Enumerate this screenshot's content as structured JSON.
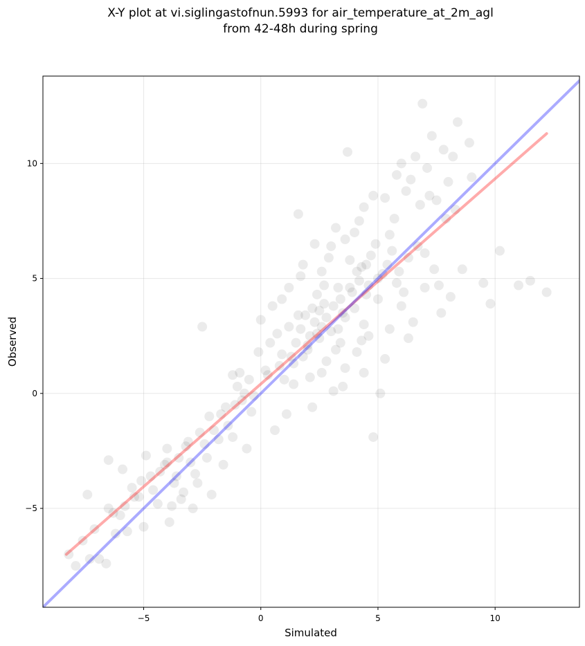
{
  "chart_data": {
    "type": "scatter",
    "title": [
      "X-Y plot at vi.siglingastofnun.5993 for air_temperature_at_2m_agl",
      "from 42-48h during spring"
    ],
    "xlabel": "Simulated",
    "ylabel": "Observed",
    "xlim": [
      -9.3,
      13.6
    ],
    "ylim": [
      -9.3,
      13.8
    ],
    "xticks": [
      -5,
      0,
      5,
      10
    ],
    "yticks": [
      -5,
      0,
      5,
      10
    ],
    "xtick_labels": [
      "−5",
      "0",
      "5",
      "10"
    ],
    "ytick_labels": [
      "−5",
      "0",
      "5",
      "10"
    ],
    "grid": true,
    "series": [
      {
        "type": "scatter",
        "color": "#000000",
        "alpha": 0.08,
        "points": [
          [
            -8.2,
            -7.0
          ],
          [
            -7.9,
            -7.5
          ],
          [
            -7.6,
            -6.4
          ],
          [
            -7.3,
            -7.2
          ],
          [
            -7.1,
            -5.9
          ],
          [
            -6.9,
            -7.2
          ],
          [
            -6.6,
            -7.4
          ],
          [
            -6.5,
            -5.0
          ],
          [
            -6.2,
            -6.1
          ],
          [
            -6.0,
            -5.3
          ],
          [
            -5.7,
            -6.0
          ],
          [
            -5.5,
            -4.1
          ],
          [
            -5.2,
            -4.5
          ],
          [
            -5.0,
            -5.8
          ],
          [
            -4.7,
            -3.6
          ],
          [
            -4.4,
            -4.8
          ],
          [
            -4.1,
            -3.1
          ],
          [
            -3.9,
            -5.6
          ],
          [
            -3.6,
            -3.6
          ],
          [
            -3.3,
            -4.3
          ],
          [
            -3.1,
            -2.1
          ],
          [
            -2.9,
            -5.0
          ],
          [
            -2.6,
            -1.7
          ],
          [
            -2.3,
            -2.8
          ],
          [
            -2.1,
            -4.4
          ],
          [
            -1.8,
            -2.0
          ],
          [
            -1.5,
            -0.6
          ],
          [
            -1.2,
            -1.9
          ],
          [
            -0.9,
            0.9
          ],
          [
            -0.6,
            -2.4
          ],
          [
            -0.3,
            -0.1
          ],
          [
            0.0,
            3.2
          ],
          [
            0.3,
            0.8
          ],
          [
            0.6,
            -1.6
          ],
          [
            0.9,
            1.7
          ],
          [
            1.2,
            2.9
          ],
          [
            1.4,
            0.4
          ],
          [
            1.7,
            5.1
          ],
          [
            2.0,
            2.1
          ],
          [
            2.2,
            -0.6
          ],
          [
            2.5,
            3.6
          ],
          [
            2.8,
            1.4
          ],
          [
            3.0,
            6.4
          ],
          [
            3.3,
            2.8
          ],
          [
            3.5,
            0.3
          ],
          [
            3.8,
            4.6
          ],
          [
            4.0,
            7.0
          ],
          [
            4.3,
            2.3
          ],
          [
            4.5,
            5.6
          ],
          [
            4.8,
            8.6
          ],
          [
            5.0,
            4.1
          ],
          [
            5.3,
            1.5
          ],
          [
            5.5,
            6.9
          ],
          [
            5.8,
            4.8
          ],
          [
            6.0,
            10.0
          ],
          [
            6.3,
            5.9
          ],
          [
            6.5,
            3.1
          ],
          [
            6.8,
            8.2
          ],
          [
            7.0,
            6.1
          ],
          [
            7.3,
            11.2
          ],
          [
            7.6,
            4.7
          ],
          [
            7.9,
            7.6
          ],
          [
            8.2,
            10.3
          ],
          [
            8.6,
            5.4
          ],
          [
            9.0,
            9.4
          ],
          [
            9.5,
            4.8
          ],
          [
            10.2,
            6.2
          ],
          [
            11.5,
            4.9
          ],
          [
            12.2,
            4.4
          ],
          [
            6.9,
            12.6
          ],
          [
            -6.5,
            -2.9
          ],
          [
            -4.0,
            -2.4
          ],
          [
            -2.5,
            2.9
          ],
          [
            -1.2,
            0.8
          ],
          [
            0.5,
            3.8
          ],
          [
            1.6,
            7.8
          ],
          [
            2.9,
            5.9
          ],
          [
            3.7,
            10.5
          ],
          [
            4.8,
            -1.9
          ],
          [
            5.1,
            0.0
          ],
          [
            -7.4,
            -4.4
          ],
          [
            -5.9,
            -3.3
          ],
          [
            -4.9,
            -2.7
          ],
          [
            -3.8,
            -4.9
          ],
          [
            -3.0,
            -3.0
          ],
          [
            -2.2,
            -1.0
          ],
          [
            -1.6,
            -3.1
          ],
          [
            -0.8,
            -0.3
          ],
          [
            -0.1,
            1.8
          ],
          [
            0.7,
            2.6
          ],
          [
            1.1,
            -0.9
          ],
          [
            1.8,
            1.6
          ],
          [
            2.4,
            2.6
          ],
          [
            2.7,
            4.7
          ],
          [
            3.2,
            1.9
          ],
          [
            3.6,
            3.3
          ],
          [
            4.1,
            5.3
          ],
          [
            4.4,
            3.0
          ],
          [
            4.9,
            6.5
          ],
          [
            5.2,
            5.2
          ],
          [
            5.7,
            7.6
          ],
          [
            6.1,
            4.4
          ],
          [
            6.4,
            9.3
          ],
          [
            6.7,
            6.4
          ],
          [
            7.2,
            8.6
          ],
          [
            7.8,
            10.6
          ],
          [
            8.4,
            11.8
          ],
          [
            8.9,
            10.9
          ],
          [
            9.8,
            3.9
          ],
          [
            11.0,
            4.7
          ],
          [
            1.9,
            3.4
          ],
          [
            2.1,
            2.5
          ],
          [
            2.3,
            3.1
          ],
          [
            2.6,
            2.9
          ],
          [
            2.8,
            3.3
          ],
          [
            3.1,
            3.8
          ],
          [
            3.4,
            4.1
          ],
          [
            3.9,
            4.4
          ],
          [
            4.2,
            4.9
          ],
          [
            4.6,
            4.7
          ],
          [
            1.5,
            2.2
          ],
          [
            2.0,
            1.9
          ],
          [
            2.5,
            2.4
          ],
          [
            3.0,
            2.7
          ],
          [
            3.5,
            3.5
          ],
          [
            4.0,
            3.7
          ],
          [
            4.5,
            4.3
          ],
          [
            5.0,
            5.0
          ],
          [
            5.4,
            5.6
          ],
          [
            5.9,
            5.3
          ],
          [
            0.8,
            1.2
          ],
          [
            1.3,
            1.6
          ],
          [
            1.7,
            2.8
          ],
          [
            2.2,
            3.7
          ],
          [
            2.7,
            3.9
          ],
          [
            3.3,
            4.6
          ],
          [
            3.8,
            5.8
          ],
          [
            4.3,
            5.5
          ],
          [
            4.7,
            6.0
          ],
          [
            5.6,
            6.2
          ],
          [
            -1.0,
            0.3
          ],
          [
            -0.5,
            0.6
          ],
          [
            0.2,
            1.0
          ],
          [
            0.4,
            2.2
          ],
          [
            1.0,
            0.6
          ],
          [
            1.4,
            1.3
          ],
          [
            1.6,
            3.4
          ],
          [
            2.4,
            4.3
          ],
          [
            3.4,
            2.2
          ],
          [
            4.6,
            2.5
          ],
          [
            -3.5,
            -2.8
          ],
          [
            -3.2,
            -2.3
          ],
          [
            -2.8,
            -3.5
          ],
          [
            -2.4,
            -2.2
          ],
          [
            -2.0,
            -1.6
          ],
          [
            -1.7,
            -0.9
          ],
          [
            -1.4,
            -1.4
          ],
          [
            -1.1,
            -0.5
          ],
          [
            -0.7,
            0.0
          ],
          [
            -0.4,
            -0.8
          ],
          [
            -6.3,
            -5.2
          ],
          [
            -5.8,
            -4.9
          ],
          [
            -5.4,
            -4.5
          ],
          [
            -5.1,
            -3.8
          ],
          [
            -4.6,
            -4.2
          ],
          [
            -4.3,
            -3.4
          ],
          [
            -4.0,
            -3.0
          ],
          [
            -3.7,
            -3.9
          ],
          [
            -3.4,
            -4.6
          ],
          [
            -2.7,
            -3.9
          ],
          [
            0.9,
            4.1
          ],
          [
            1.2,
            4.6
          ],
          [
            1.8,
            5.6
          ],
          [
            2.3,
            6.5
          ],
          [
            2.6,
            5.3
          ],
          [
            3.2,
            7.2
          ],
          [
            3.6,
            6.7
          ],
          [
            4.2,
            7.5
          ],
          [
            4.4,
            8.1
          ],
          [
            5.3,
            8.5
          ],
          [
            5.8,
            9.5
          ],
          [
            6.2,
            8.8
          ],
          [
            6.6,
            10.3
          ],
          [
            7.1,
            9.8
          ],
          [
            7.5,
            8.4
          ],
          [
            8.0,
            9.2
          ],
          [
            8.3,
            8.0
          ],
          [
            7.4,
            5.4
          ],
          [
            7.7,
            3.5
          ],
          [
            8.1,
            4.2
          ],
          [
            2.1,
            0.7
          ],
          [
            2.6,
            0.9
          ],
          [
            3.1,
            0.1
          ],
          [
            3.6,
            1.1
          ],
          [
            4.1,
            1.8
          ],
          [
            4.4,
            0.9
          ],
          [
            5.5,
            2.8
          ],
          [
            6.0,
            3.8
          ],
          [
            6.3,
            2.4
          ],
          [
            7.0,
            4.6
          ]
        ]
      }
    ],
    "lines": [
      {
        "color": "#ff0000",
        "alpha": 0.33,
        "x": [
          -8.3,
          12.2
        ],
        "y": [
          -7.0,
          11.3
        ]
      },
      {
        "color": "#0000ff",
        "alpha": 0.33,
        "x": [
          -9.3,
          13.6
        ],
        "y": [
          -9.3,
          13.6
        ]
      }
    ]
  }
}
